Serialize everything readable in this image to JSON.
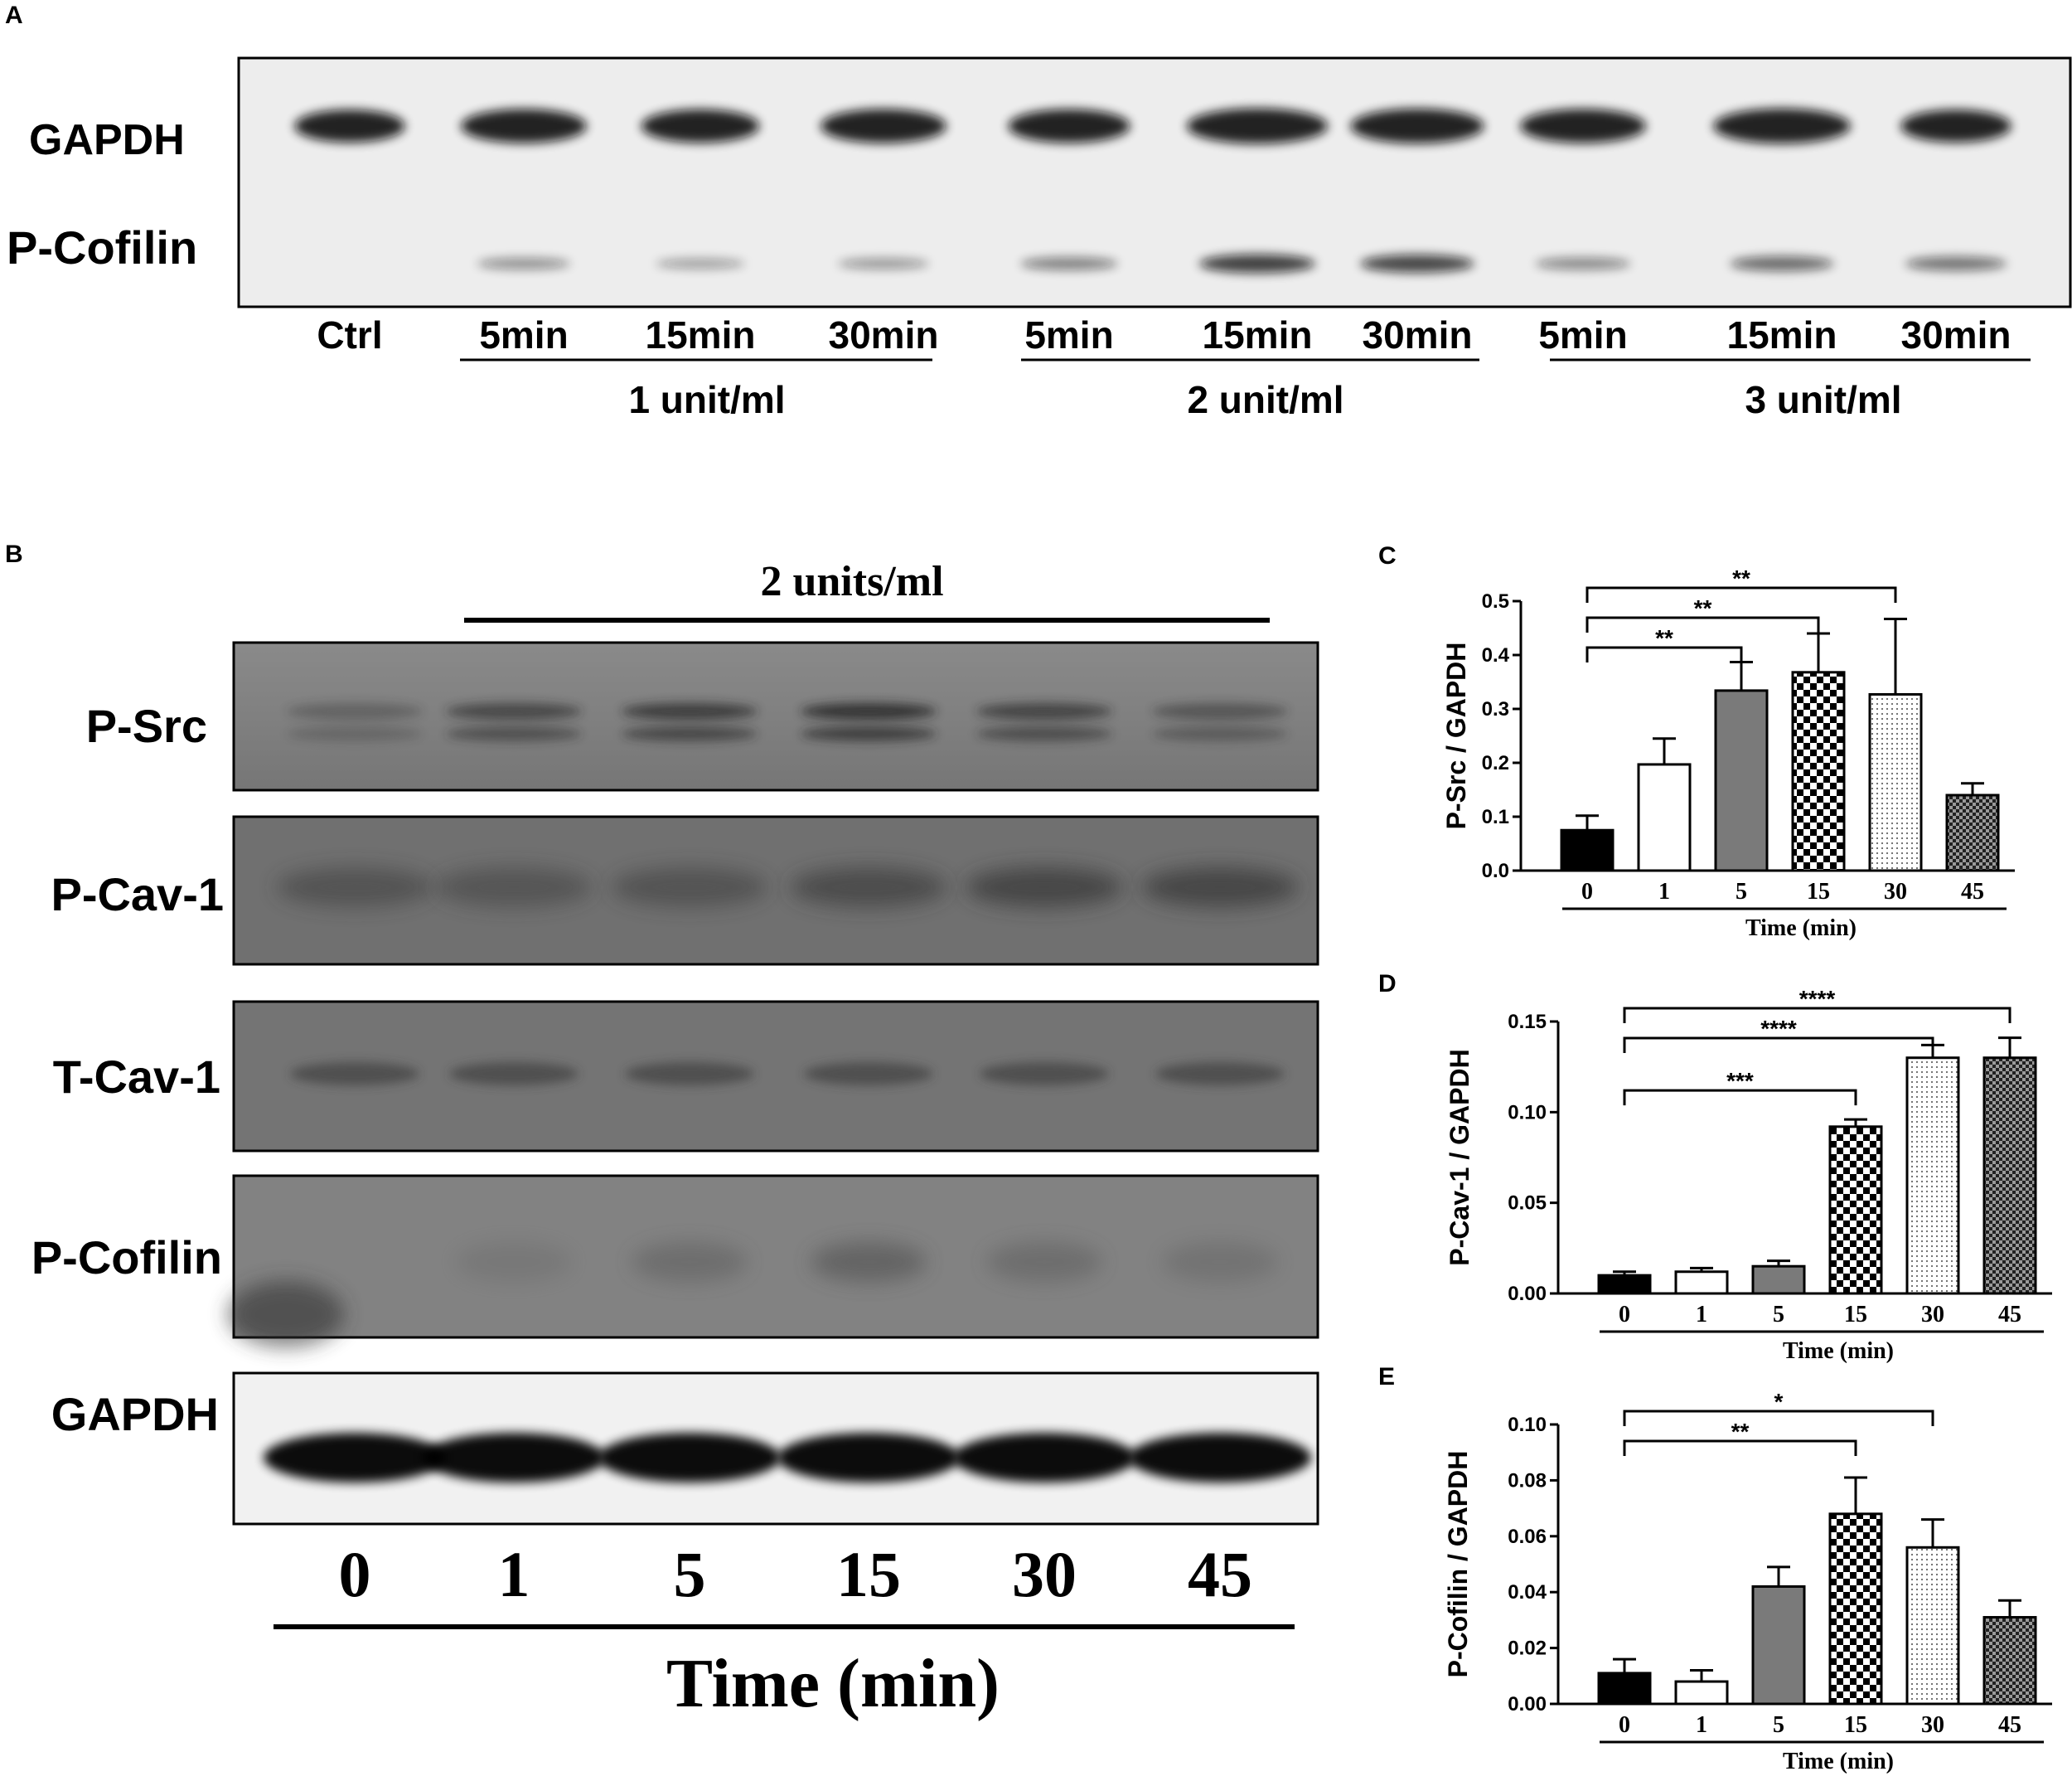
{
  "colors": {
    "gel_light": "#ececec",
    "gel_dark_bg": "#7a7a7a",
    "band": "#1a1a1a",
    "bar_black": "#000000",
    "bar_white": "#ffffff",
    "bar_gray": "#7a7a7a"
  },
  "panel_a": {
    "letter": "A",
    "rows": [
      "GAPDH",
      "P-Cofilin"
    ],
    "lanes": [
      "Ctrl",
      "5min",
      "15min",
      "30min",
      "5min",
      "15min",
      "30min",
      "5min",
      "15min",
      "30min"
    ],
    "groups": [
      "1 unit/ml",
      "2 unit/ml",
      "3 unit/ml"
    ]
  },
  "panel_b": {
    "letter": "B",
    "treatment": "2 units/ml",
    "rows": [
      "P-Src",
      "P-Cav-1",
      "T-Cav-1",
      "P-Cofilin",
      "GAPDH"
    ],
    "lanes": [
      "0",
      "1",
      "5",
      "15",
      "30",
      "45"
    ],
    "xlabel": "Time (min)"
  },
  "chart_data": [
    {
      "letter": "C",
      "type": "bar",
      "categories": [
        "0",
        "1",
        "5",
        "15",
        "30",
        "45"
      ],
      "values": [
        0.075,
        0.197,
        0.334,
        0.368,
        0.327,
        0.14
      ],
      "errors": [
        0.027,
        0.048,
        0.053,
        0.072,
        0.14,
        0.022
      ],
      "fills": [
        "black",
        "white",
        "gray",
        "checker",
        "dots",
        "fine-checker"
      ],
      "ylabel": "P-Src / GAPDH",
      "xlabel": "Time (min)",
      "ylim": [
        0,
        0.5
      ],
      "yticks": [
        "0.0",
        "0.1",
        "0.2",
        "0.3",
        "0.4",
        "0.5"
      ],
      "significance": [
        {
          "from": 0,
          "to": 2,
          "label": "**"
        },
        {
          "from": 0,
          "to": 3,
          "label": "**"
        },
        {
          "from": 0,
          "to": 4,
          "label": "**"
        }
      ]
    },
    {
      "letter": "D",
      "type": "bar",
      "categories": [
        "0",
        "1",
        "5",
        "15",
        "30",
        "45"
      ],
      "values": [
        0.01,
        0.012,
        0.015,
        0.092,
        0.13,
        0.13
      ],
      "errors": [
        0.002,
        0.002,
        0.003,
        0.004,
        0.007,
        0.011
      ],
      "fills": [
        "black",
        "white",
        "gray",
        "checker",
        "dots",
        "fine-checker"
      ],
      "ylabel": "P-Cav-1 / GAPDH",
      "xlabel": "Time (min)",
      "ylim": [
        0,
        0.15
      ],
      "yticks": [
        "0.00",
        "0.05",
        "0.10",
        "0.15"
      ],
      "significance": [
        {
          "from": 0,
          "to": 3,
          "label": "***"
        },
        {
          "from": 0,
          "to": 4,
          "label": "****"
        },
        {
          "from": 0,
          "to": 5,
          "label": "****"
        }
      ]
    },
    {
      "letter": "E",
      "type": "bar",
      "categories": [
        "0",
        "1",
        "5",
        "15",
        "30",
        "45"
      ],
      "values": [
        0.011,
        0.008,
        0.042,
        0.068,
        0.056,
        0.031
      ],
      "errors": [
        0.005,
        0.004,
        0.007,
        0.013,
        0.01,
        0.006
      ],
      "fills": [
        "black",
        "white",
        "gray",
        "checker",
        "dots",
        "fine-checker"
      ],
      "ylabel": "P-Cofilin / GAPDH",
      "xlabel": "Time (min)",
      "ylim": [
        0,
        0.1
      ],
      "yticks": [
        "0.00",
        "0.02",
        "0.04",
        "0.06",
        "0.08",
        "0.10"
      ],
      "significance": [
        {
          "from": 0,
          "to": 3,
          "label": "**"
        },
        {
          "from": 0,
          "to": 4,
          "label": "*"
        }
      ]
    }
  ]
}
